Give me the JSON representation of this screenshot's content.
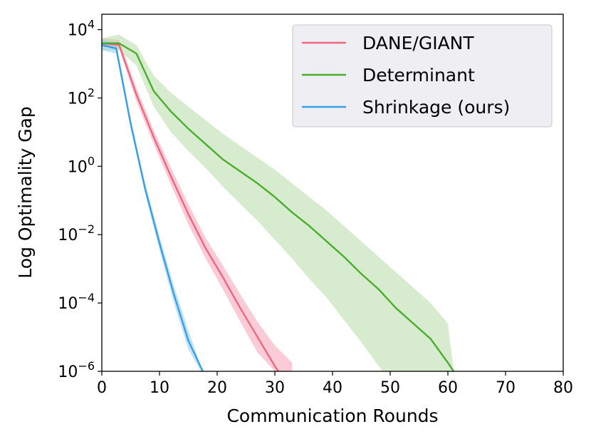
{
  "chart_data": {
    "type": "line",
    "xlabel": "Communication Rounds",
    "ylabel": "Log Optimality Gap",
    "xlim": [
      0,
      80
    ],
    "ylim_log10": [
      -6,
      4.45
    ],
    "y_scale": "log",
    "xticks": [
      0,
      10,
      20,
      30,
      40,
      50,
      60,
      70,
      80
    ],
    "xtick_labels": [
      "0",
      "10",
      "20",
      "30",
      "40",
      "50",
      "60",
      "70",
      "80"
    ],
    "yticks_exp": [
      -6,
      -4,
      -2,
      0,
      2,
      4
    ],
    "ytick_base": "10",
    "ytick_exponents": [
      "−6",
      "−4",
      "−2",
      "0",
      "2",
      "4"
    ],
    "legend_position": "upper-right",
    "series": [
      {
        "name": "DANE/GIANT",
        "color": "#f06680",
        "band_color": "#f7a3b6",
        "x": [
          0,
          3,
          6,
          9,
          12,
          15,
          18,
          21,
          24,
          27,
          30,
          33
        ],
        "log10_y": [
          3.6,
          3.55,
          2.1,
          0.85,
          -0.3,
          -1.4,
          -2.4,
          -3.25,
          -4.15,
          -5.0,
          -5.85,
          -6.6
        ],
        "band_upper": [
          3.75,
          3.7,
          2.3,
          1.05,
          -0.05,
          -1.1,
          -2.1,
          -2.9,
          -3.75,
          -4.55,
          -5.25,
          -5.75
        ],
        "band_lower": [
          3.5,
          3.45,
          1.9,
          0.65,
          -0.55,
          -1.7,
          -2.7,
          -3.6,
          -4.55,
          -5.45,
          -6.0,
          -6.6
        ]
      },
      {
        "name": "Determinant",
        "color": "#4aad2e",
        "band_color": "#b6dda6",
        "x": [
          0,
          3,
          6,
          9,
          12,
          15,
          18,
          21,
          24,
          27,
          30,
          33,
          36,
          39,
          42,
          45,
          48,
          51,
          54,
          57,
          60,
          61
        ],
        "log10_y": [
          3.6,
          3.6,
          3.3,
          2.2,
          1.6,
          1.1,
          0.65,
          0.2,
          -0.15,
          -0.5,
          -0.9,
          -1.35,
          -1.75,
          -2.2,
          -2.65,
          -3.15,
          -3.6,
          -4.15,
          -4.6,
          -5.05,
          -5.75,
          -6.0
        ],
        "band_upper": [
          3.75,
          3.85,
          3.55,
          2.65,
          2.15,
          1.75,
          1.35,
          0.95,
          0.6,
          0.25,
          -0.1,
          -0.5,
          -0.9,
          -1.3,
          -1.75,
          -2.2,
          -2.65,
          -3.1,
          -3.55,
          -4.0,
          -4.6,
          -6.0
        ],
        "band_lower": [
          3.4,
          3.4,
          2.95,
          1.75,
          1.0,
          0.45,
          -0.05,
          -0.6,
          -1.1,
          -1.6,
          -2.15,
          -2.7,
          -3.3,
          -3.85,
          -4.5,
          -5.15,
          -5.85,
          -6.5,
          -6.5,
          -6.5,
          -6.5,
          -6.5
        ]
      },
      {
        "name": "Shrinkage (ours)",
        "color": "#3a9ee4",
        "band_color": "#8fcdf2",
        "x": [
          0,
          2.5,
          5,
          7.5,
          10,
          12.5,
          15,
          17.5
        ],
        "log10_y": [
          3.55,
          3.45,
          1.25,
          -0.65,
          -2.25,
          -3.75,
          -5.1,
          -6.0
        ],
        "band_upper": [
          3.7,
          3.6,
          1.4,
          -0.5,
          -2.05,
          -3.5,
          -4.8,
          -6.0
        ],
        "band_lower": [
          3.4,
          3.3,
          1.1,
          -0.8,
          -2.45,
          -4.0,
          -5.35,
          -6.1
        ]
      }
    ]
  }
}
